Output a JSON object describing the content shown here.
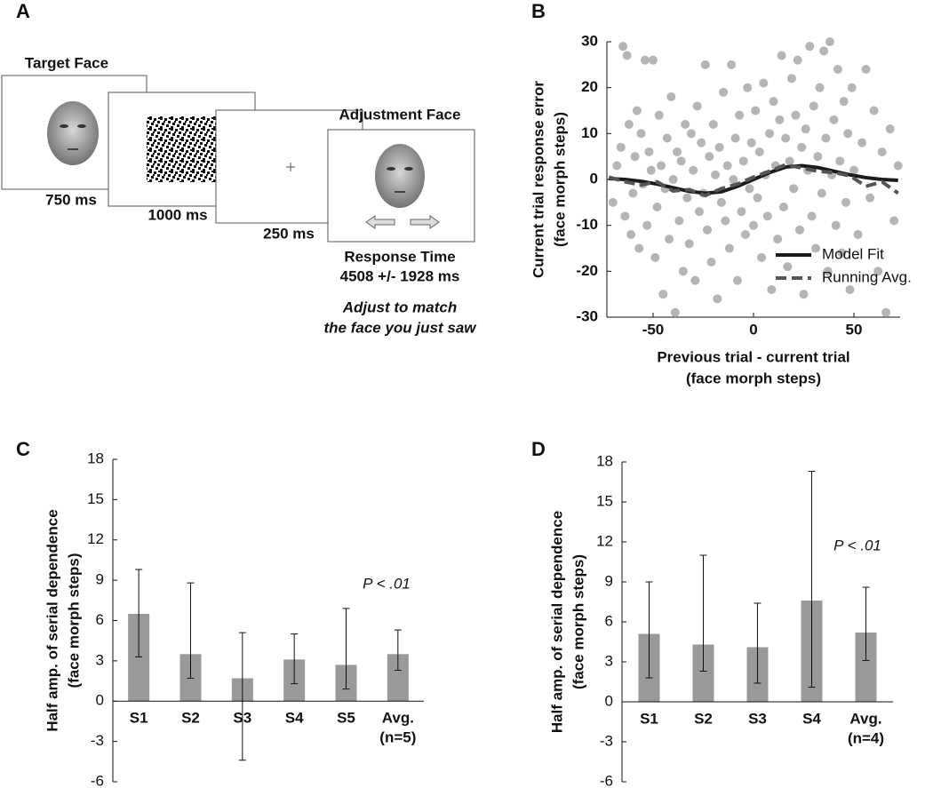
{
  "panel_a": {
    "label": "A",
    "target_title": "Target Face",
    "durations": [
      "750 ms",
      "1000 ms",
      "250 ms"
    ],
    "adjust_title": "Adjustment Face",
    "response_title": "Response Time",
    "response_value": "4508 +/- 1928 ms",
    "instruction": [
      "Adjust to match",
      "the face you just saw"
    ]
  },
  "chart_data": [
    {
      "type": "scatter",
      "label": "B",
      "ylabel": [
        "Current trial response error",
        "(face morph steps)"
      ],
      "xlabel": [
        "Previous trial - current trial",
        "(face morph steps)"
      ],
      "xlim": [
        -73,
        73
      ],
      "xticks": [
        -50,
        0,
        50
      ],
      "ylim": [
        -30,
        30
      ],
      "yticks": [
        -30,
        -20,
        -10,
        0,
        10,
        20,
        30
      ],
      "legend": "lower right",
      "points": {
        "color": "#b5b5b5",
        "x": [
          -70,
          -68,
          -66,
          -65,
          -64,
          -63,
          -62,
          -61,
          -60,
          -59,
          -58,
          -57,
          -56,
          -55,
          -54,
          -53,
          -52,
          -51,
          -50,
          -49,
          -48,
          -47,
          -46,
          -45,
          -44,
          -43,
          -42,
          -41,
          -40,
          -39,
          -38,
          -37,
          -36,
          -35,
          -34,
          -33,
          -32,
          -31,
          -30,
          -29,
          -28,
          -27,
          -26,
          -25,
          -24,
          -23,
          -22,
          -21,
          -20,
          -19,
          -18,
          -17,
          -16,
          -15,
          -14,
          -13,
          -12,
          -11,
          -10,
          -9,
          -8,
          -7,
          -6,
          -5,
          -4,
          -3,
          -2,
          -1,
          0,
          1,
          2,
          3,
          4,
          5,
          6,
          7,
          8,
          9,
          10,
          11,
          12,
          13,
          14,
          15,
          16,
          17,
          18,
          19,
          20,
          21,
          22,
          23,
          24,
          25,
          26,
          27,
          28,
          29,
          30,
          31,
          32,
          33,
          34,
          35,
          36,
          37,
          38,
          39,
          40,
          41,
          42,
          43,
          44,
          45,
          46,
          47,
          48,
          49,
          50,
          52,
          54,
          56,
          58,
          60,
          62,
          64,
          66,
          68,
          70,
          72
        ],
        "values": [
          -5,
          3,
          7,
          29,
          -8,
          27,
          12,
          -12,
          -3,
          5,
          15,
          -15,
          10,
          -1,
          26,
          -10,
          6,
          2,
          26,
          -17,
          -6,
          14,
          3,
          -25,
          -2,
          9,
          -13,
          18,
          0,
          -29,
          6,
          -9,
          4,
          -20,
          12,
          -4,
          -14,
          10,
          2,
          -22,
          16,
          -7,
          8,
          -3,
          25,
          -11,
          5,
          -18,
          12,
          1,
          -26,
          7,
          -5,
          19,
          -9,
          3,
          -15,
          25,
          0,
          9,
          -22,
          14,
          -7,
          4,
          -12,
          20,
          -2,
          8,
          -10,
          15,
          -4,
          6,
          -17,
          21,
          1,
          -8,
          10,
          -24,
          17,
          3,
          -13,
          13,
          27,
          -6,
          9,
          -19,
          4,
          22,
          -2,
          14,
          26,
          -11,
          7,
          -25,
          11,
          2,
          29,
          -8,
          16,
          -15,
          5,
          20,
          -3,
          28,
          9,
          -20,
          30,
          1,
          13,
          -10,
          24,
          4,
          -16,
          17,
          -5,
          10,
          -24,
          20,
          2,
          -12,
          8,
          24,
          -4,
          15,
          -20,
          6,
          -29,
          11,
          -9,
          3
        ]
      },
      "series": [
        {
          "name": "Model Fit",
          "color": "#1a1a1a",
          "style": "solid",
          "x": [
            -72,
            -64,
            -56,
            -48,
            -40,
            -32,
            -24,
            -16,
            -8,
            0,
            8,
            16,
            24,
            32,
            40,
            48,
            56,
            64,
            72
          ],
          "values": [
            0.2,
            0,
            -0.4,
            -1.0,
            -1.8,
            -2.6,
            -3.0,
            -2.7,
            -1.5,
            0,
            1.5,
            2.7,
            3.0,
            2.6,
            1.8,
            1.0,
            0.4,
            0,
            -0.2
          ]
        },
        {
          "name": "Running Avg.",
          "color": "#555555",
          "style": "dashed",
          "x": [
            -72,
            -64,
            -56,
            -48,
            -40,
            -32,
            -24,
            -16,
            -8,
            0,
            8,
            16,
            24,
            32,
            40,
            48,
            56,
            64,
            72
          ],
          "values": [
            0.5,
            -0.5,
            -1.2,
            -0.5,
            -2.5,
            -2.2,
            -3.5,
            -2.0,
            -1.0,
            0.5,
            1.8,
            3.2,
            2.5,
            1.8,
            1.5,
            0.8,
            -1.5,
            -0.5,
            -3.0
          ]
        }
      ]
    },
    {
      "type": "bar",
      "label": "C",
      "ylabel": [
        "Half amp. of serial dependence",
        "(face morph steps)"
      ],
      "annotation": "P < .01",
      "categories": [
        "S1",
        "S2",
        "S3",
        "S4",
        "S5",
        [
          "Avg.",
          "(n=5)"
        ]
      ],
      "values": [
        6.5,
        3.5,
        1.7,
        3.1,
        2.7,
        3.5
      ],
      "lower": [
        3.3,
        1.7,
        -4.4,
        1.3,
        0.9,
        2.3
      ],
      "upper": [
        9.8,
        8.8,
        5.1,
        5.0,
        6.9,
        5.3
      ],
      "color": "#999999",
      "ylim": [
        -6,
        18
      ],
      "yticks": [
        -6,
        -3,
        0,
        3,
        6,
        9,
        12,
        15,
        18
      ]
    },
    {
      "type": "bar",
      "label": "D",
      "ylabel": [
        "Half amp. of serial dependence",
        "(face morph steps)"
      ],
      "annotation": "P < .01",
      "categories": [
        "S1",
        "S2",
        "S3",
        "S4",
        [
          "Avg.",
          "(n=4)"
        ]
      ],
      "values": [
        5.1,
        4.3,
        4.1,
        7.6,
        5.2
      ],
      "lower": [
        1.8,
        2.3,
        1.4,
        1.1,
        3.1
      ],
      "upper": [
        9.0,
        11.0,
        7.4,
        17.3,
        8.6
      ],
      "color": "#999999",
      "ylim": [
        -6,
        18
      ],
      "yticks": [
        -6,
        -3,
        0,
        3,
        6,
        9,
        12,
        15,
        18
      ]
    }
  ]
}
